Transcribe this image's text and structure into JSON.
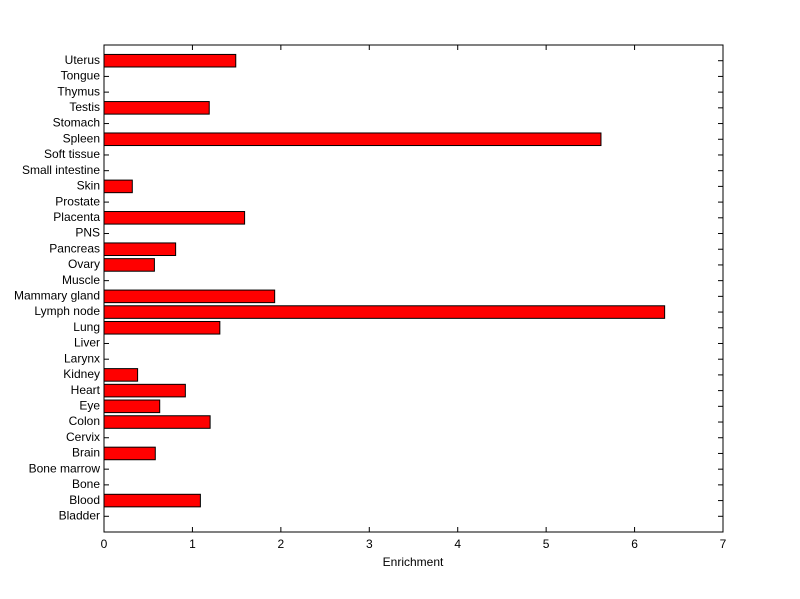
{
  "chart_data": {
    "type": "barh",
    "xlabel": "Enrichment",
    "categories": [
      "Bladder",
      "Blood",
      "Bone",
      "Bone marrow",
      "Brain",
      "Cervix",
      "Colon",
      "Eye",
      "Heart",
      "Kidney",
      "Larynx",
      "Liver",
      "Lung",
      "Lymph node",
      "Mammary gland",
      "Muscle",
      "Ovary",
      "Pancreas",
      "PNS",
      "Placenta",
      "Prostate",
      "Skin",
      "Small intestine",
      "Soft tissue",
      "Spleen",
      "Stomach",
      "Testis",
      "Thymus",
      "Tongue",
      "Uterus"
    ],
    "values": [
      0,
      1.09,
      0,
      0,
      0.58,
      0,
      1.2,
      0.63,
      0.92,
      0.38,
      0,
      0,
      1.31,
      6.34,
      1.93,
      0,
      0.57,
      0.81,
      0,
      1.59,
      0,
      0.32,
      0,
      0,
      5.62,
      0,
      1.19,
      0,
      0,
      1.49
    ],
    "color": "#ff0000",
    "xlim": [
      0,
      7
    ],
    "xticks": [
      0,
      1,
      2,
      3,
      4,
      5,
      6,
      7
    ]
  }
}
